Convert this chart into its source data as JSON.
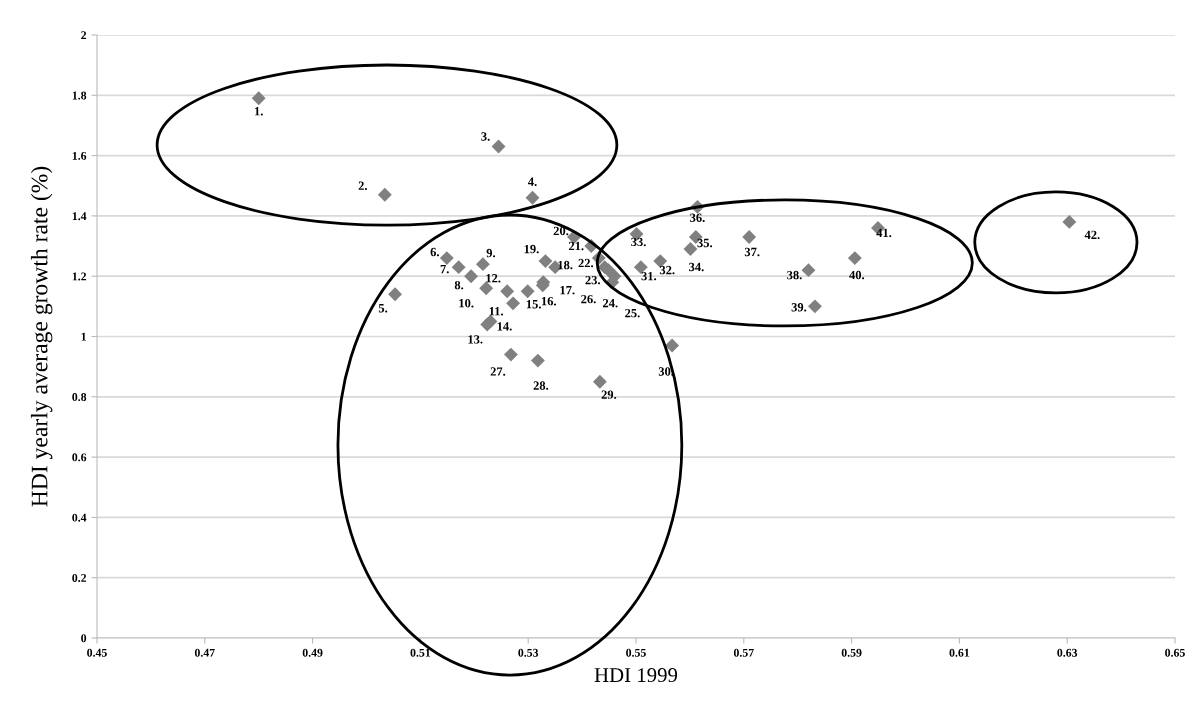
{
  "chart_data": {
    "type": "scatter",
    "xlabel": "HDI 1999",
    "ylabel": "HDI yearly average growth rate (%)",
    "xlim": [
      0.45,
      0.65
    ],
    "xticks": [
      0.45,
      0.47,
      0.49,
      0.51,
      0.53,
      0.55,
      0.57,
      0.59,
      0.61,
      0.63,
      0.65
    ],
    "ylim": [
      0,
      2
    ],
    "yticks": [
      0,
      0.2,
      0.4,
      0.6,
      0.8,
      1,
      1.2,
      1.4,
      1.6,
      1.8,
      2
    ],
    "grid": "y",
    "marker": "diamond",
    "series": [
      {
        "color": "#808080",
        "x": [
          0.48,
          0.5034,
          0.5245,
          0.5308,
          0.5053,
          0.5149,
          0.5171,
          0.5194,
          0.5216,
          0.5222,
          0.5272,
          0.5261,
          0.5224,
          0.523,
          0.5299,
          0.5327,
          0.5328,
          0.535,
          0.5332,
          0.5385,
          0.5417,
          0.5431,
          0.5442,
          0.5456,
          0.546,
          0.5449,
          0.5268,
          0.5318,
          0.5433,
          0.5567,
          0.5509,
          0.5545,
          0.5501,
          0.5601,
          0.5611,
          0.5614,
          0.571,
          0.582,
          0.5832,
          0.5906,
          0.5949,
          0.6304
        ],
        "values": [
          1.79,
          1.47,
          1.63,
          1.46,
          1.14,
          1.26,
          1.23,
          1.2,
          1.24,
          1.16,
          1.11,
          1.15,
          1.04,
          1.05,
          1.15,
          1.17,
          1.18,
          1.23,
          1.25,
          1.33,
          1.3,
          1.26,
          1.23,
          1.18,
          1.2,
          1.22,
          0.94,
          0.92,
          0.85,
          0.97,
          1.23,
          1.25,
          1.34,
          1.29,
          1.33,
          1.43,
          1.33,
          1.22,
          1.1,
          1.26,
          1.36,
          1.38
        ]
      }
    ],
    "annotations": [
      {
        "text": "1.",
        "x": 0.48,
        "y": 1.79
      },
      {
        "text": "2.",
        "x": 0.5034,
        "y": 1.47
      },
      {
        "text": "3.",
        "x": 0.5245,
        "y": 1.63
      },
      {
        "text": "4.",
        "x": 0.5308,
        "y": 1.46
      },
      {
        "text": "5.",
        "x": 0.5053,
        "y": 1.14
      },
      {
        "text": "6.",
        "x": 0.5149,
        "y": 1.26
      },
      {
        "text": "7.",
        "x": 0.5171,
        "y": 1.23
      },
      {
        "text": "8.",
        "x": 0.5194,
        "y": 1.2
      },
      {
        "text": "9.",
        "x": 0.5216,
        "y": 1.24
      },
      {
        "text": "10.",
        "x": 0.5222,
        "y": 1.16
      },
      {
        "text": "11.",
        "x": 0.5272,
        "y": 1.11
      },
      {
        "text": "12.",
        "x": 0.5261,
        "y": 1.15
      },
      {
        "text": "13.",
        "x": 0.5224,
        "y": 1.04
      },
      {
        "text": "14.",
        "x": 0.523,
        "y": 1.05
      },
      {
        "text": "15.",
        "x": 0.5299,
        "y": 1.15
      },
      {
        "text": "16.",
        "x": 0.5327,
        "y": 1.17
      },
      {
        "text": "17.",
        "x": 0.5328,
        "y": 1.18
      },
      {
        "text": "18.",
        "x": 0.535,
        "y": 1.23
      },
      {
        "text": "19.",
        "x": 0.5332,
        "y": 1.25
      },
      {
        "text": "20.",
        "x": 0.5385,
        "y": 1.33
      },
      {
        "text": "21.",
        "x": 0.5417,
        "y": 1.3
      },
      {
        "text": "22.",
        "x": 0.5431,
        "y": 1.26
      },
      {
        "text": "23.",
        "x": 0.5442,
        "y": 1.23
      },
      {
        "text": "24.",
        "x": 0.5456,
        "y": 1.18
      },
      {
        "text": "25.",
        "x": 0.546,
        "y": 1.2
      },
      {
        "text": "26.",
        "x": 0.5449,
        "y": 1.22
      },
      {
        "text": "27.",
        "x": 0.5268,
        "y": 0.94
      },
      {
        "text": "28.",
        "x": 0.5318,
        "y": 0.92
      },
      {
        "text": "29.",
        "x": 0.5433,
        "y": 0.85
      },
      {
        "text": "30.",
        "x": 0.5567,
        "y": 0.97
      },
      {
        "text": "31.",
        "x": 0.5509,
        "y": 1.23
      },
      {
        "text": "32.",
        "x": 0.5545,
        "y": 1.25
      },
      {
        "text": "33.",
        "x": 0.5501,
        "y": 1.34
      },
      {
        "text": "34.",
        "x": 0.5601,
        "y": 1.29
      },
      {
        "text": "35.",
        "x": 0.5611,
        "y": 1.33
      },
      {
        "text": "36.",
        "x": 0.5614,
        "y": 1.43
      },
      {
        "text": "37.",
        "x": 0.571,
        "y": 1.33
      },
      {
        "text": "38.",
        "x": 0.582,
        "y": 1.22
      },
      {
        "text": "39.",
        "x": 0.5832,
        "y": 1.1
      },
      {
        "text": "40.",
        "x": 0.5906,
        "y": 1.26
      },
      {
        "text": "41.",
        "x": 0.5949,
        "y": 1.36
      },
      {
        "text": "42.",
        "x": 0.6304,
        "y": 1.38
      }
    ]
  }
}
